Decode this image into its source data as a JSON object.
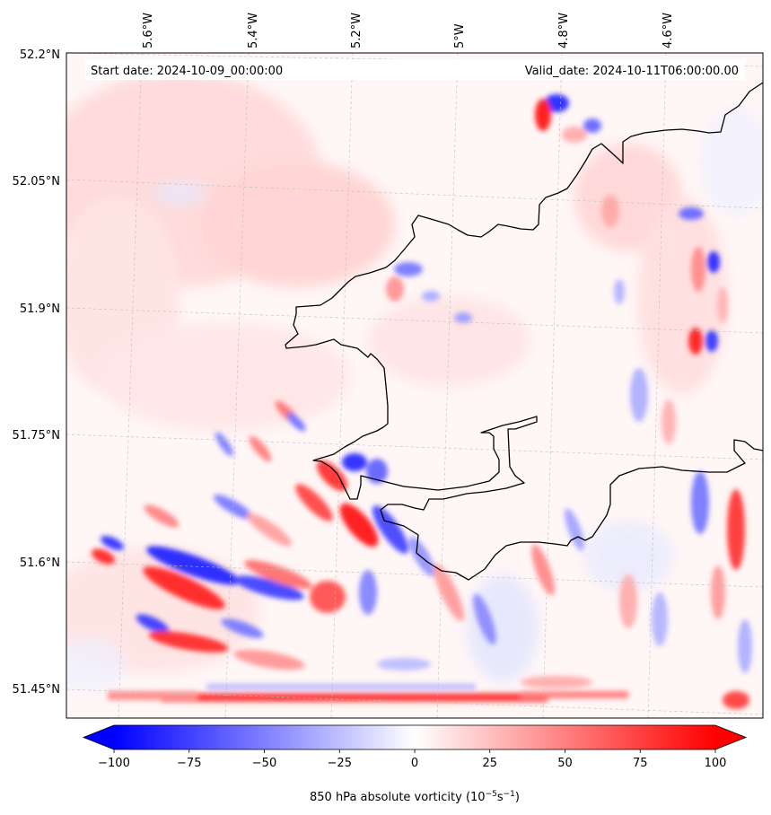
{
  "header": {
    "start_date": "Start date: 2024-10-09_00:00:00",
    "valid_date": "Valid_date: 2024-10-11T06:00:00.00"
  },
  "map": {
    "region": "South Wales coast / Bristol Channel",
    "lon_labels": [
      "5.6°W",
      "5.4°W",
      "5.2°W",
      "5°W",
      "4.8°W",
      "4.6°W"
    ],
    "lat_labels": [
      "52.2°N",
      "52.05°N",
      "51.9°N",
      "51.75°N",
      "51.6°N",
      "51.45°N"
    ]
  },
  "colorbar": {
    "ticks": [
      "−100",
      "−75",
      "−50",
      "−25",
      "0",
      "25",
      "50",
      "75",
      "100"
    ],
    "label_prefix": "850 hPa absolute vorticity (10",
    "label_exp1": "−5",
    "label_mid": "s",
    "label_exp2": "−1",
    "label_suffix": ")",
    "min": -100,
    "max": 100,
    "colormap": "bwr",
    "extend": "both"
  },
  "colors": {
    "negative": "#0000ff",
    "positive": "#ff0000",
    "neutral": "#ffffff",
    "coastline": "#000000",
    "gridline": "#b8b8b8"
  }
}
